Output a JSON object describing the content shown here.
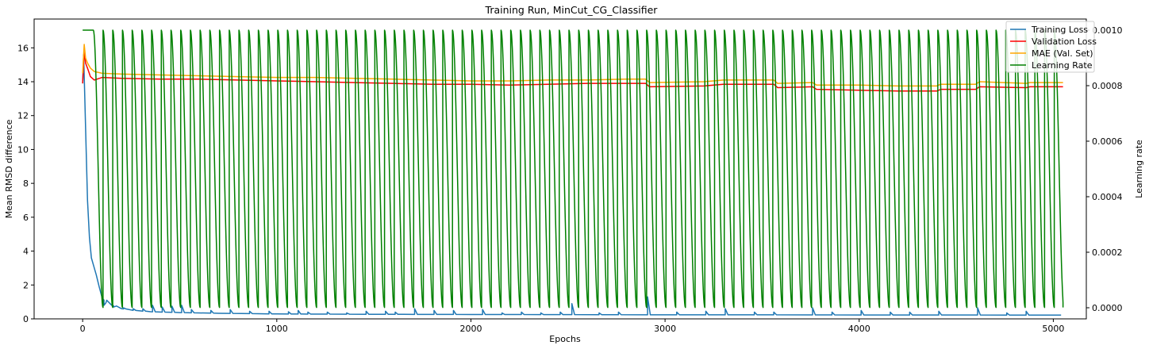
{
  "chart_data": {
    "type": "line",
    "title": "Training Run, MinCut_CG_Classifier",
    "xlabel": "Epochs",
    "ylabel": "Mean RMSD difference",
    "y2label": "Learning rate",
    "xlim": [
      -250,
      5170
    ],
    "ylim": [
      0,
      17.7
    ],
    "y2lim": [
      -4e-05,
      0.00104
    ],
    "x_ticks": [
      0,
      1000,
      2000,
      3000,
      4000,
      5000
    ],
    "x_tick_labels": [
      "0",
      "1000",
      "2000",
      "3000",
      "4000",
      "5000"
    ],
    "y_ticks": [
      0,
      2,
      4,
      6,
      8,
      10,
      12,
      14,
      16
    ],
    "y_tick_labels": [
      "0",
      "2",
      "4",
      "6",
      "8",
      "10",
      "12",
      "14",
      "16"
    ],
    "y2_ticks": [
      0,
      0.0002,
      0.0004,
      0.0006,
      0.0008,
      0.001
    ],
    "y2_tick_labels": [
      "0.0000",
      "0.0002",
      "0.0004",
      "0.0006",
      "0.0008",
      "0.0010"
    ],
    "grid": false,
    "legend_position": "top-right",
    "series": [
      {
        "name": "Training Loss",
        "color": "#1f77b4",
        "axis": "left",
        "points": [
          [
            0,
            13.9
          ],
          [
            5,
            15.6
          ],
          [
            10,
            13.5
          ],
          [
            18,
            10
          ],
          [
            25,
            7
          ],
          [
            35,
            4.8
          ],
          [
            45,
            3.6
          ],
          [
            55,
            3.2
          ],
          [
            70,
            2.6
          ],
          [
            85,
            1.9
          ],
          [
            100,
            1.25
          ],
          [
            120,
            0.95
          ],
          [
            150,
            0.8
          ],
          [
            200,
            0.6
          ],
          [
            260,
            0.5
          ],
          [
            350,
            0.42
          ],
          [
            500,
            0.37
          ],
          [
            700,
            0.33
          ],
          [
            1000,
            0.29
          ],
          [
            1500,
            0.27
          ],
          [
            2000,
            0.26
          ],
          [
            2500,
            0.25
          ],
          [
            3000,
            0.24
          ],
          [
            3500,
            0.24
          ],
          [
            4000,
            0.23
          ],
          [
            4500,
            0.23
          ],
          [
            5040,
            0.22
          ]
        ],
        "spikes": [
          [
            110,
            0.8
          ],
          [
            160,
            0.7
          ],
          [
            210,
            0.65
          ],
          [
            260,
            0.6
          ],
          [
            310,
            0.6
          ],
          [
            360,
            0.8
          ],
          [
            410,
            0.7
          ],
          [
            460,
            0.75
          ],
          [
            510,
            0.8
          ],
          [
            560,
            0.55
          ],
          [
            660,
            0.5
          ],
          [
            760,
            0.55
          ],
          [
            860,
            0.45
          ],
          [
            960,
            0.45
          ],
          [
            1060,
            0.42
          ],
          [
            1110,
            0.5
          ],
          [
            1160,
            0.4
          ],
          [
            1260,
            0.4
          ],
          [
            1360,
            0.35
          ],
          [
            1460,
            0.45
          ],
          [
            1560,
            0.45
          ],
          [
            1610,
            0.4
          ],
          [
            1710,
            0.6
          ],
          [
            1810,
            0.5
          ],
          [
            1910,
            0.5
          ],
          [
            2060,
            0.55
          ],
          [
            2160,
            0.35
          ],
          [
            2260,
            0.4
          ],
          [
            2360,
            0.35
          ],
          [
            2460,
            0.4
          ],
          [
            2520,
            0.9
          ],
          [
            2660,
            0.35
          ],
          [
            2760,
            0.4
          ],
          [
            2910,
            1.3
          ],
          [
            3060,
            0.4
          ],
          [
            3210,
            0.45
          ],
          [
            3310,
            0.6
          ],
          [
            3460,
            0.4
          ],
          [
            3560,
            0.4
          ],
          [
            3760,
            0.65
          ],
          [
            3860,
            0.4
          ],
          [
            4010,
            0.5
          ],
          [
            4160,
            0.4
          ],
          [
            4260,
            0.4
          ],
          [
            4410,
            0.45
          ],
          [
            4610,
            0.65
          ],
          [
            4760,
            0.35
          ],
          [
            4860,
            0.45
          ]
        ]
      },
      {
        "name": "Validation Loss",
        "color": "#ff0000",
        "axis": "left",
        "points": [
          [
            0,
            13.9
          ],
          [
            8,
            15.8
          ],
          [
            15,
            15.1
          ],
          [
            25,
            14.8
          ],
          [
            40,
            14.3
          ],
          [
            60,
            14.1
          ],
          [
            100,
            14.25
          ],
          [
            200,
            14.2
          ],
          [
            400,
            14.15
          ],
          [
            600,
            14.15
          ],
          [
            800,
            14.1
          ],
          [
            1000,
            14.05
          ],
          [
            1200,
            14
          ],
          [
            1400,
            13.95
          ],
          [
            1600,
            13.9
          ],
          [
            1800,
            13.85
          ],
          [
            2000,
            13.85
          ],
          [
            2200,
            13.8
          ],
          [
            2400,
            13.85
          ],
          [
            2600,
            13.9
          ],
          [
            2800,
            13.9
          ],
          [
            2900,
            13.9
          ],
          [
            2920,
            13.7
          ],
          [
            3200,
            13.75
          ],
          [
            3300,
            13.85
          ],
          [
            3560,
            13.85
          ],
          [
            3580,
            13.65
          ],
          [
            3760,
            13.7
          ],
          [
            3780,
            13.55
          ],
          [
            4000,
            13.5
          ],
          [
            4200,
            13.45
          ],
          [
            4400,
            13.45
          ],
          [
            4420,
            13.55
          ],
          [
            4600,
            13.55
          ],
          [
            4620,
            13.7
          ],
          [
            4860,
            13.65
          ],
          [
            4880,
            13.7
          ],
          [
            5050,
            13.7
          ]
        ]
      },
      {
        "name": "MAE (Val. Set)",
        "color": "#ffa500",
        "axis": "left",
        "points": [
          [
            0,
            14.5
          ],
          [
            8,
            16.2
          ],
          [
            15,
            15.4
          ],
          [
            25,
            15.1
          ],
          [
            40,
            14.8
          ],
          [
            60,
            14.6
          ],
          [
            100,
            14.5
          ],
          [
            200,
            14.45
          ],
          [
            400,
            14.4
          ],
          [
            600,
            14.35
          ],
          [
            800,
            14.3
          ],
          [
            1000,
            14.25
          ],
          [
            1200,
            14.25
          ],
          [
            1400,
            14.2
          ],
          [
            1600,
            14.15
          ],
          [
            1800,
            14.1
          ],
          [
            2000,
            14.05
          ],
          [
            2200,
            14.05
          ],
          [
            2400,
            14.1
          ],
          [
            2600,
            14.1
          ],
          [
            2800,
            14.15
          ],
          [
            2900,
            14.15
          ],
          [
            2920,
            13.95
          ],
          [
            3200,
            14
          ],
          [
            3300,
            14.1
          ],
          [
            3560,
            14.1
          ],
          [
            3580,
            13.9
          ],
          [
            3760,
            13.95
          ],
          [
            3780,
            13.8
          ],
          [
            4000,
            13.8
          ],
          [
            4200,
            13.75
          ],
          [
            4400,
            13.75
          ],
          [
            4420,
            13.85
          ],
          [
            4600,
            13.85
          ],
          [
            4620,
            14
          ],
          [
            4860,
            13.9
          ],
          [
            4880,
            13.95
          ],
          [
            5050,
            13.95
          ]
        ]
      },
      {
        "name": "Learning Rate",
        "color": "#008000",
        "axis": "right",
        "lr_max": 0.001,
        "lr_min": 1e-06,
        "hold_until_epoch": 55,
        "cycle_start_epoch": 55,
        "cycle_length_epochs": 50,
        "end_epoch": 5050
      }
    ]
  }
}
